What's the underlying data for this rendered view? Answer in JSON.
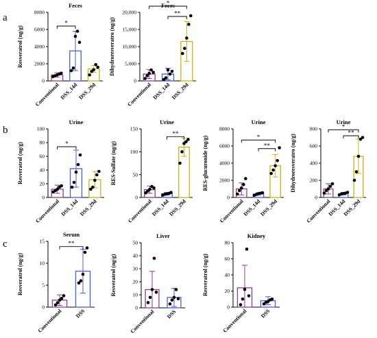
{
  "colors": {
    "conventional": "#8c3a8c",
    "dss14": "#4a5cc9",
    "dss29": "#c6b21c",
    "dss": "#4a5cc9",
    "dot": "#000000",
    "axis": "#000000"
  },
  "panel_labels": [
    "a",
    "b",
    "c"
  ],
  "chart_data": [
    {
      "id": "a1",
      "panel": "a",
      "type": "bar",
      "title": "Feces",
      "ylabel": "Resveratrol (ng/g)",
      "categories": [
        "Conventional",
        "DSS_14d",
        "DSS_29d"
      ],
      "values": [
        700,
        3500,
        1400
      ],
      "errors": [
        250,
        2300,
        400
      ],
      "ylim": [
        0,
        8000
      ],
      "ticks": [
        0,
        2000,
        4000,
        6000,
        8000
      ],
      "tick_labels": [
        "0",
        "2000",
        "4000",
        "6000",
        "8000"
      ],
      "points": [
        [
          500,
          600,
          700,
          800,
          900
        ],
        [
          1200,
          1500,
          5200,
          5800,
          4500
        ],
        [
          700,
          1100,
          1300,
          1900,
          1600
        ]
      ],
      "sig": [
        {
          "from": 0,
          "to": 1,
          "label": "*",
          "level": 6400
        }
      ]
    },
    {
      "id": "a2",
      "panel": "a",
      "type": "bar",
      "title": "Feces",
      "ylabel": "Dihydroresveratro (ng/g)",
      "categories": [
        "Conventional",
        "DSS_14d",
        "DSS_29d"
      ],
      "values": [
        2000,
        2000,
        11500
      ],
      "errors": [
        1300,
        1700,
        5800
      ],
      "ylim": [
        0,
        20000
      ],
      "ticks": [
        0,
        5000,
        10000,
        15000,
        20000
      ],
      "tick_labels": [
        "0",
        "5,000",
        "10,000",
        "15,000",
        "20,000"
      ],
      "points": [
        [
          700,
          1500,
          2200,
          3200,
          2500
        ],
        [
          400,
          900,
          3200,
          2000,
          2800
        ],
        [
          8000,
          9500,
          12500,
          16500,
          19000
        ]
      ],
      "sig": [
        {
          "from": 1,
          "to": 2,
          "label": "**",
          "level": 18800
        },
        {
          "from": 0,
          "to": 2,
          "label": "*",
          "level": 21800
        }
      ]
    },
    {
      "id": "b1",
      "panel": "b",
      "type": "bar",
      "title": "Urine",
      "ylabel": "Resveratrol (ng/g)",
      "categories": [
        "Conventional",
        "DSS_14d",
        "DSS_29d"
      ],
      "values": [
        12,
        42,
        26
      ],
      "errors": [
        6,
        27,
        12
      ],
      "ylim": [
        0,
        100
      ],
      "ticks": [
        0,
        20,
        40,
        60,
        80,
        100
      ],
      "tick_labels": [
        "0",
        "20",
        "40",
        "60",
        "80",
        "100"
      ],
      "points": [
        [
          8,
          10,
          12,
          15,
          17
        ],
        [
          15,
          22,
          37,
          48,
          62
        ],
        [
          12,
          15,
          25,
          33,
          38
        ]
      ],
      "sig": [
        {
          "from": 0,
          "to": 1,
          "label": "*",
          "level": 74
        }
      ]
    },
    {
      "id": "b2",
      "panel": "b",
      "type": "bar",
      "title": "Urine",
      "ylabel": "RES-Sulfate (ng/g)",
      "categories": [
        "Conventional",
        "DSS_14d",
        "DSS_29d"
      ],
      "values": [
        17,
        8,
        110
      ],
      "errors": [
        8,
        3,
        20
      ],
      "ylim": [
        0,
        150
      ],
      "ticks": [
        0,
        50,
        100,
        150
      ],
      "tick_labels": [
        "0",
        "50",
        "100",
        "150"
      ],
      "points": [
        [
          10,
          14,
          18,
          24,
          21
        ],
        [
          5,
          7,
          8,
          9,
          11
        ],
        [
          75,
          100,
          118,
          122,
          127
        ]
      ],
      "sig": [
        {
          "from": 1,
          "to": 2,
          "label": "**",
          "level": 133
        }
      ]
    },
    {
      "id": "b3",
      "panel": "b",
      "type": "bar",
      "title": "Urine",
      "ylabel": "RES-glucuronide (ng/g)",
      "categories": [
        "Conventional",
        "DSS_14d",
        "DSS_29d"
      ],
      "values": [
        1000,
        400,
        3700
      ],
      "errors": [
        700,
        150,
        1300
      ],
      "ylim": [
        0,
        8000
      ],
      "ticks": [
        0,
        2000,
        4000,
        6000,
        8000
      ],
      "tick_labels": [
        "0",
        "2000",
        "4000",
        "6000",
        "8000"
      ],
      "points": [
        [
          400,
          800,
          1100,
          1500,
          2200
        ],
        [
          250,
          350,
          450,
          500,
          550
        ],
        [
          2800,
          3200,
          3700,
          4300,
          5800
        ]
      ],
      "sig": [
        {
          "from": 1,
          "to": 2,
          "label": "**",
          "level": 5700
        },
        {
          "from": 0,
          "to": 2,
          "label": "*",
          "level": 6700
        }
      ]
    },
    {
      "id": "b4",
      "panel": "b",
      "type": "bar",
      "title": "Urine",
      "ylabel": "Dihydroresveratro (ng/g)",
      "categories": [
        "Conventional",
        "DSS_14d",
        "DSS_29d"
      ],
      "values": [
        100,
        45,
        480
      ],
      "errors": [
        60,
        15,
        200
      ],
      "ylim": [
        0,
        800
      ],
      "ticks": [
        0,
        200,
        400,
        600,
        800
      ],
      "tick_labels": [
        "0",
        "200",
        "400",
        "600",
        "800"
      ],
      "points": [
        [
          50,
          80,
          100,
          130,
          160
        ],
        [
          30,
          40,
          45,
          50,
          60
        ],
        [
          200,
          300,
          480,
          680,
          700
        ]
      ],
      "sig": [
        {
          "from": 1,
          "to": 2,
          "label": "**",
          "level": 720
        },
        {
          "from": 0,
          "to": 2,
          "label": "*",
          "level": 790
        }
      ]
    },
    {
      "id": "c1",
      "panel": "c",
      "type": "bar",
      "title": "Serum",
      "ylabel": "Resveratrol (ng/g)",
      "categories": [
        "Conventional",
        "DSS"
      ],
      "values": [
        1.6,
        8.2
      ],
      "errors": [
        1.2,
        5
      ],
      "ylim": [
        0,
        15
      ],
      "ticks": [
        0,
        5,
        10,
        15
      ],
      "tick_labels": [
        "0",
        "5",
        "10",
        "15"
      ],
      "points": [
        [
          0.5,
          1.0,
          1.6,
          2.0,
          2.6
        ],
        [
          5.5,
          6.0,
          7.5,
          12.5,
          13.5
        ]
      ],
      "sig": [
        {
          "from": 0,
          "to": 1,
          "label": "**",
          "level": 13.8
        }
      ]
    },
    {
      "id": "c2",
      "panel": "c",
      "type": "bar",
      "title": "Liver",
      "ylabel": "Resveratrol (ng/g)",
      "categories": [
        "Conventional",
        "DSS"
      ],
      "values": [
        14,
        8
      ],
      "errors": [
        14,
        7
      ],
      "ylim": [
        0,
        50
      ],
      "ticks": [
        0,
        10,
        20,
        30,
        40,
        50
      ],
      "tick_labels": [
        "0",
        "10",
        "20",
        "30",
        "40",
        "50"
      ],
      "points": [
        [
          4,
          8,
          14,
          38,
          12
        ],
        [
          3,
          6,
          8,
          14,
          7
        ]
      ],
      "sig": []
    },
    {
      "id": "c3",
      "panel": "c",
      "type": "bar",
      "title": "Kidney",
      "ylabel": "Resveratrol (ng/g)",
      "categories": [
        "Conventional",
        "DSS"
      ],
      "values": [
        24,
        8
      ],
      "errors": [
        28,
        5
      ],
      "ylim": [
        0,
        80
      ],
      "ticks": [
        0,
        20,
        40,
        60,
        80
      ],
      "tick_labels": [
        "0",
        "20",
        "40",
        "60",
        "80"
      ],
      "points": [
        [
          3,
          10,
          22,
          72,
          14
        ],
        [
          4,
          6,
          7,
          9,
          10
        ]
      ],
      "sig": []
    }
  ]
}
